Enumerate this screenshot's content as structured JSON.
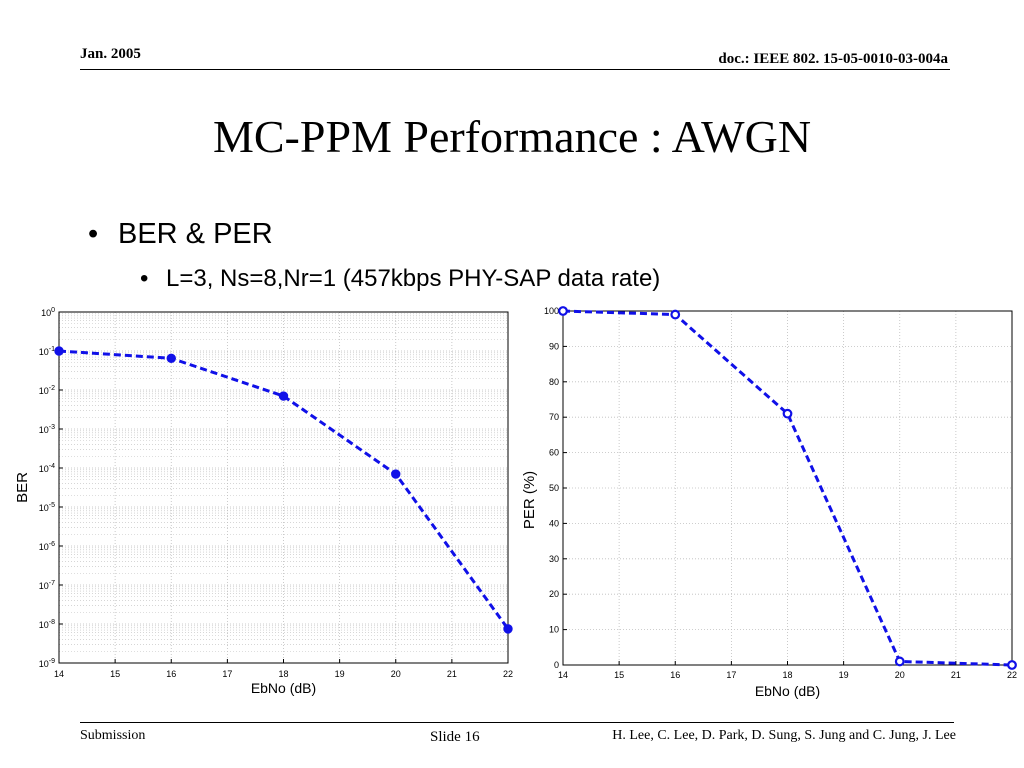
{
  "header": {
    "date": "Jan. 2005",
    "doc_id": "doc.: IEEE 802. 15-05-0010-03-004a"
  },
  "slide": {
    "title": "MC-PPM Performance : AWGN",
    "bullet1": "BER & PER",
    "bullet2": "L=3, Ns=8,Nr=1 (457kbps PHY-SAP data rate)"
  },
  "footer": {
    "left": "Submission",
    "slide_num": "Slide 16",
    "authors": "H. Lee, C. Lee, D. Park, D. Sung, S. Jung and C. Jung, J. Lee"
  },
  "colors": {
    "series": "#1010e8",
    "grid": "#bdbdbd",
    "axis": "#000000"
  },
  "chart_data": [
    {
      "type": "line",
      "xlabel": "EbNo (dB)",
      "ylabel": "BER",
      "yscale": "log",
      "xlim": [
        14,
        22
      ],
      "ylim": [
        1e-09,
        1
      ],
      "xticks": [
        14,
        15,
        16,
        17,
        18,
        19,
        20,
        21,
        22
      ],
      "ytick_exponents": [
        0,
        -1,
        -2,
        -3,
        -4,
        -5,
        -6,
        -7,
        -8,
        -9
      ],
      "grid": true,
      "x": [
        14,
        16,
        18,
        20,
        22
      ],
      "y": [
        0.1,
        0.065,
        0.007,
        7e-05,
        7.5e-09
      ],
      "marker": "filled-circle",
      "line_style": "dashed"
    },
    {
      "type": "line",
      "xlabel": "EbNo (dB)",
      "ylabel": "PER (%)",
      "xlim": [
        14,
        22
      ],
      "ylim": [
        0,
        100
      ],
      "xticks": [
        14,
        15,
        16,
        17,
        18,
        19,
        20,
        21,
        22
      ],
      "yticks": [
        0,
        10,
        20,
        30,
        40,
        50,
        60,
        70,
        80,
        90,
        100
      ],
      "grid": true,
      "x": [
        14,
        16,
        18,
        20,
        22
      ],
      "y": [
        100,
        99,
        71,
        1,
        0
      ],
      "marker": "open-circle",
      "line_style": "dashed"
    }
  ]
}
